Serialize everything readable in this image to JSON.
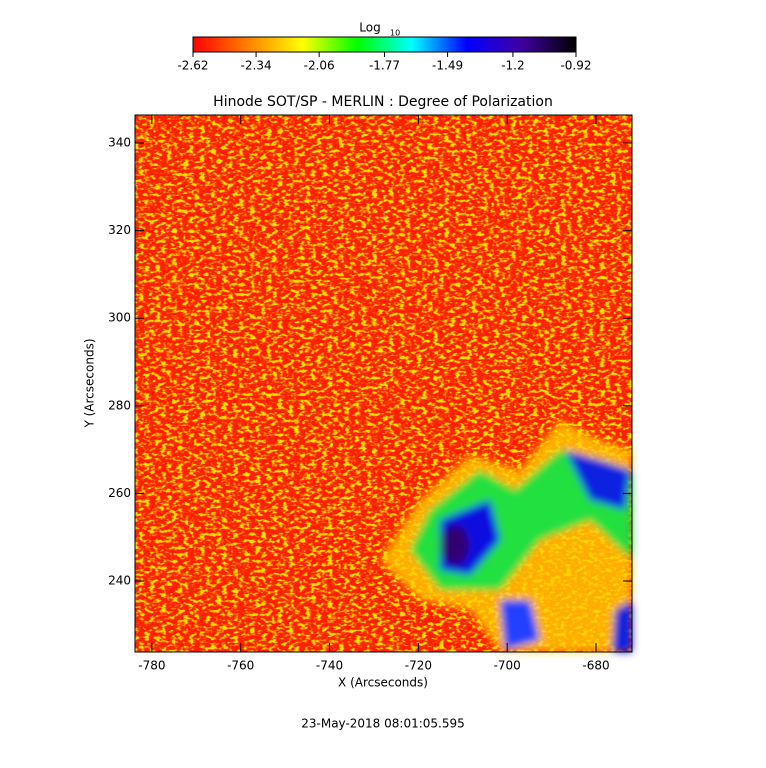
{
  "chart_data": {
    "type": "image",
    "title": "Hinode SOT/SP - MERLIN : Degree of Polarization",
    "x_label": "X (Arcseconds)",
    "y_label": "Y (Arcseconds)",
    "date": "23-May-2018 08:01:05.595",
    "xlim": [
      -783.8,
      -671.9
    ],
    "xticks": [
      -780,
      -760,
      -740,
      -720,
      -700,
      -680
    ],
    "ylim": [
      223.8,
      346.4
    ],
    "yticks": [
      240,
      260,
      280,
      300,
      320,
      340
    ],
    "colorbar": {
      "label": "Log",
      "label_sub": "10",
      "lim": [
        -2.62,
        -0.92
      ],
      "ticks": [
        -2.62,
        -2.34,
        -2.06,
        -1.77,
        -1.49,
        -1.2,
        -0.92
      ],
      "colormap": [
        "#ff0000",
        "#ff8000",
        "#ffff00",
        "#00ff00",
        "#00ffff",
        "#0000ff",
        "#4000a0",
        "#000000"
      ]
    }
  }
}
